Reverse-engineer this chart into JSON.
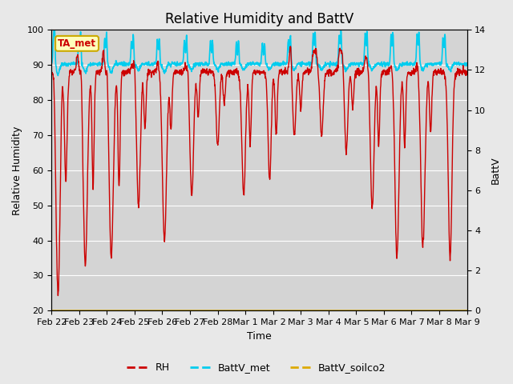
{
  "title": "Relative Humidity and BattV",
  "xlabel": "Time",
  "ylabel_left": "Relative Humidity",
  "ylabel_right": "BattV",
  "ylim_left": [
    20,
    100
  ],
  "ylim_right": [
    0,
    14
  ],
  "yticks_left": [
    20,
    30,
    40,
    50,
    60,
    70,
    80,
    90,
    100
  ],
  "yticks_right": [
    0,
    2,
    4,
    6,
    8,
    10,
    12,
    14
  ],
  "x_tick_labels": [
    "Feb 22",
    "Feb 23",
    "Feb 24",
    "Feb 25",
    "Feb 26",
    "Feb 27",
    "Feb 28",
    "Mar 1",
    "Mar 2",
    "Mar 3",
    "Mar 4",
    "Mar 5",
    "Mar 6",
    "Mar 7",
    "Mar 8",
    "Mar 9"
  ],
  "rh_color": "#cc0000",
  "battv_met_color": "#00ccee",
  "battv_soilco2_color": "#ddaa00",
  "bg_color": "#e8e8e8",
  "plot_bg_color": "#d4d4d4",
  "annotation_text": "TA_met",
  "annotation_bg": "#ffffbb",
  "annotation_border": "#ccaa00",
  "legend_items": [
    "RH",
    "BattV_met",
    "BattV_soilco2"
  ],
  "title_fontsize": 12,
  "axis_label_fontsize": 9,
  "tick_fontsize": 8,
  "rh_linewidth": 1.0,
  "battv_linewidth": 1.2
}
